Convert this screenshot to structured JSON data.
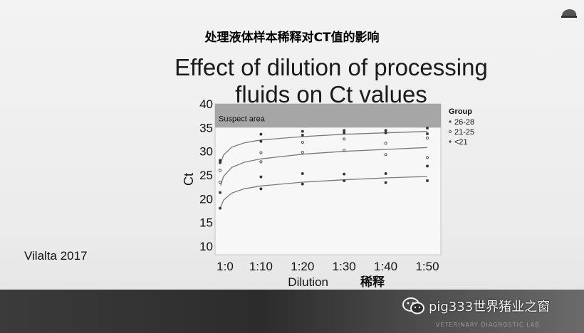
{
  "slide": {
    "title_zh": "处理液体样本稀释对CT值的影响",
    "citation": "Vilalta 2017"
  },
  "footer": {
    "watermark": "pig333世界猪业之窗",
    "lab_text": "VETERINARY DIAGNOSTIC LAB"
  },
  "chart_data": {
    "type": "scatter",
    "title": "Effect of dilution of processing fluids on Ct values",
    "xlabel": "Dilution",
    "xlabel_zh": "稀释",
    "ylabel": "Ct",
    "categories": [
      "1:0",
      "1:10",
      "1:20",
      "1:30",
      "1:40",
      "1:50"
    ],
    "x": [
      0,
      10,
      20,
      30,
      40,
      50
    ],
    "xlim": [
      0,
      50
    ],
    "ylim": [
      10,
      40
    ],
    "yticks": [
      10,
      15,
      20,
      25,
      30,
      35,
      40
    ],
    "grid": false,
    "annotations": [
      "Suspect area"
    ],
    "suspect_area": [
      35,
      40
    ],
    "legend": {
      "title": "Group",
      "position": "right"
    },
    "series": [
      {
        "name": "26-28",
        "marker": "*",
        "color": "#333333",
        "points": [
          [
            0,
            27.6
          ],
          [
            0,
            28.1
          ],
          [
            10,
            33.6
          ],
          [
            10,
            32.1
          ],
          [
            20,
            33.4
          ],
          [
            20,
            34.2
          ],
          [
            30,
            33.9
          ],
          [
            30,
            34.4
          ],
          [
            40,
            33.9
          ],
          [
            40,
            34.4
          ],
          [
            50,
            33.7
          ],
          [
            50,
            34.9
          ]
        ],
        "fit": [
          [
            0.3,
            27.5
          ],
          [
            1,
            29.2
          ],
          [
            3,
            30.9
          ],
          [
            6,
            31.8
          ],
          [
            10,
            32.4
          ],
          [
            20,
            33.1
          ],
          [
            30,
            33.6
          ],
          [
            40,
            33.9
          ],
          [
            50,
            34.2
          ]
        ]
      },
      {
        "name": "21-25",
        "marker": "°",
        "color": "#555555",
        "points": [
          [
            0,
            23.5
          ],
          [
            0,
            26.0
          ],
          [
            10,
            27.8
          ],
          [
            10,
            29.7
          ],
          [
            20,
            29.8
          ],
          [
            20,
            31.9
          ],
          [
            30,
            30.2
          ],
          [
            30,
            32.6
          ],
          [
            40,
            29.3
          ],
          [
            40,
            31.7
          ],
          [
            50,
            28.7
          ],
          [
            50,
            32.8
          ]
        ],
        "fit": [
          [
            0.3,
            22.8
          ],
          [
            1,
            24.7
          ],
          [
            3,
            26.6
          ],
          [
            6,
            27.7
          ],
          [
            10,
            28.4
          ],
          [
            20,
            29.4
          ],
          [
            30,
            30.0
          ],
          [
            40,
            30.4
          ],
          [
            50,
            30.8
          ]
        ]
      },
      {
        "name": "<21",
        "marker": "*",
        "color": "#333333",
        "points": [
          [
            0,
            18.0
          ],
          [
            0,
            21.3
          ],
          [
            10,
            22.1
          ],
          [
            10,
            24.6
          ],
          [
            20,
            23.1
          ],
          [
            20,
            25.3
          ],
          [
            30,
            23.8
          ],
          [
            30,
            25.2
          ],
          [
            40,
            23.4
          ],
          [
            40,
            25.3
          ],
          [
            50,
            23.8
          ],
          [
            50,
            26.9
          ]
        ],
        "fit": [
          [
            0.3,
            18.2
          ],
          [
            1,
            19.7
          ],
          [
            3,
            21.2
          ],
          [
            6,
            22.1
          ],
          [
            10,
            22.7
          ],
          [
            20,
            23.5
          ],
          [
            30,
            24.0
          ],
          [
            40,
            24.4
          ],
          [
            50,
            24.7
          ]
        ]
      }
    ]
  }
}
